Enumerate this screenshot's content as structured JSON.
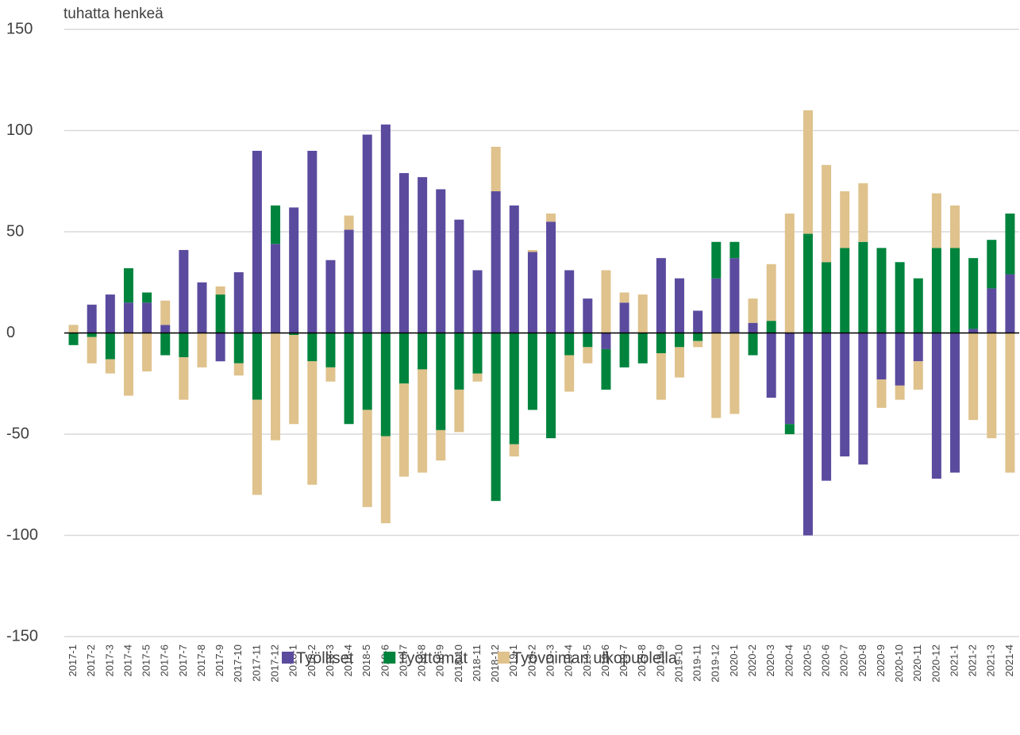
{
  "chart_data": {
    "type": "stacked_bar",
    "y_axis_label": "tuhatta henkeä",
    "categories": [
      "2017-1",
      "2017-2",
      "2017-3",
      "2017-4",
      "2017-5",
      "2017-6",
      "2017-7",
      "2017-8",
      "2017-9",
      "2017-10",
      "2017-11",
      "2017-12",
      "2018-1",
      "2018-2",
      "2018-3",
      "2018-4",
      "2018-5",
      "2018-6",
      "2018-7",
      "2018-8",
      "2018-9",
      "2018-10",
      "2018-11",
      "2018-12",
      "2019-1",
      "2019-2",
      "2019-3",
      "2019-4",
      "2019-5",
      "2019-6",
      "2019-7",
      "2019-8",
      "2019-9",
      "2019-10",
      "2019-11",
      "2019-12",
      "2020-1",
      "2020-2",
      "2020-3",
      "2020-4",
      "2020-5",
      "2020-6",
      "2020-7",
      "2020-8",
      "2020-9",
      "2020-10",
      "2020-11",
      "2020-12",
      "2021-1",
      "2021-2",
      "2021-3",
      "2021-4"
    ],
    "series": [
      {
        "name": "Työlliset",
        "color": "#5b4b9e",
        "values": [
          0,
          14,
          19,
          15,
          15,
          4,
          41,
          25,
          -14,
          30,
          90,
          44,
          62,
          90,
          36,
          51,
          98,
          103,
          79,
          77,
          71,
          56,
          31,
          70,
          63,
          40,
          55,
          31,
          17,
          -8,
          15,
          0,
          37,
          27,
          11,
          27,
          37,
          5,
          -32,
          -45,
          -100,
          -73,
          -61,
          -65,
          -23,
          -26,
          -14,
          -72,
          -69,
          2,
          22,
          29
        ]
      },
      {
        "name": "Työttömät",
        "color": "#00843d",
        "values": [
          -6,
          -2,
          -13,
          17,
          5,
          -11,
          -12,
          0,
          19,
          -15,
          -33,
          19,
          -1,
          -14,
          -17,
          -45,
          -38,
          -51,
          -25,
          -18,
          -48,
          -28,
          -20,
          -83,
          -55,
          -38,
          -52,
          -11,
          -7,
          -20,
          -17,
          -15,
          -10,
          -7,
          -4,
          18,
          8,
          -11,
          6,
          -5,
          49,
          35,
          42,
          45,
          42,
          35,
          27,
          42,
          42,
          35,
          24,
          30
        ]
      },
      {
        "name": "Työvoiman ulkopuolella",
        "color": "#dfc28c",
        "values": [
          4,
          -13,
          -7,
          -31,
          -19,
          12,
          -21,
          -17,
          4,
          -6,
          -47,
          -53,
          -44,
          -61,
          -7,
          7,
          -48,
          -43,
          -46,
          -51,
          -15,
          -21,
          -4,
          22,
          -6,
          1,
          4,
          -18,
          -8,
          31,
          5,
          19,
          -23,
          -15,
          -3,
          -42,
          -40,
          12,
          28,
          59,
          61,
          48,
          28,
          29,
          -14,
          -7,
          -14,
          27,
          21,
          -43,
          -52,
          -69
        ]
      }
    ],
    "ylim": [
      -150,
      150
    ],
    "yticks": [
      150,
      100,
      50,
      0,
      -50,
      -100,
      -150
    ],
    "grid": true
  }
}
